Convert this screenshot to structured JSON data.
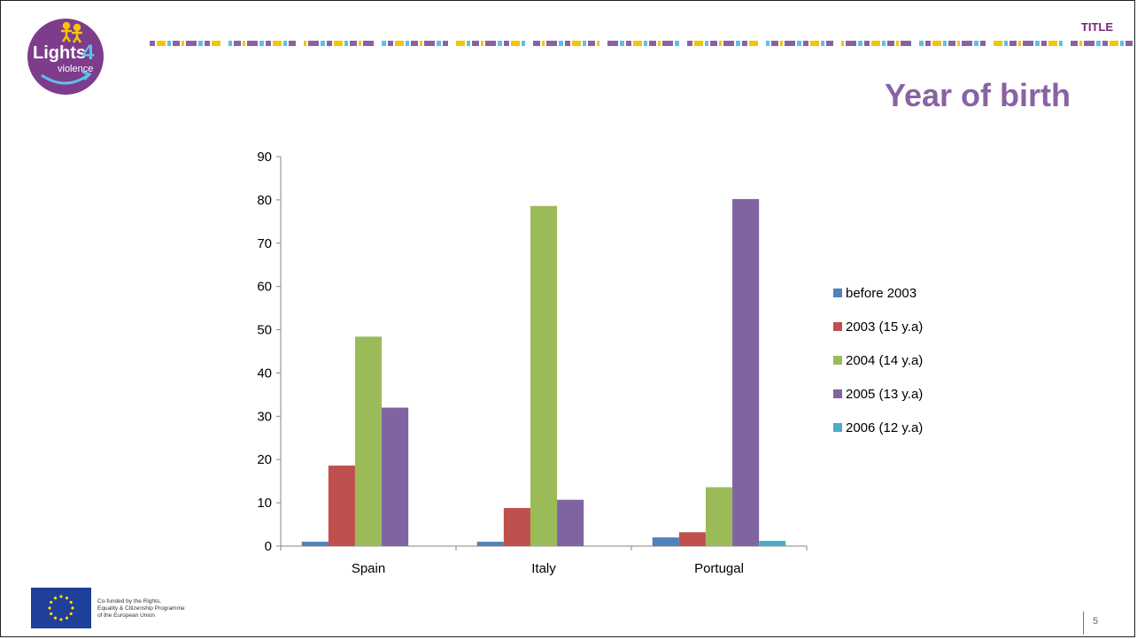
{
  "header": {
    "section_tag": "TITLE",
    "title": "Year of birth"
  },
  "logo": {
    "text_main": "Lights",
    "text_digit": "4",
    "text_sub": "violence"
  },
  "footer": {
    "funding_lines": [
      "Co-funded by the Rights,",
      "Equality & Citizenship Programme",
      "of the European Union"
    ],
    "page_number": "5"
  },
  "colors": {
    "accent": "#8a62a4",
    "tag": "#7a2673",
    "logo_bg": "#7d3c8c"
  },
  "chart_data": {
    "type": "bar",
    "categories": [
      "Spain",
      "Italy",
      "Portugal"
    ],
    "ylim": [
      0,
      90
    ],
    "yticks": [
      0,
      10,
      20,
      30,
      40,
      50,
      60,
      70,
      80,
      90
    ],
    "legend_position": "right",
    "grid": false,
    "series": [
      {
        "name": "before 2003",
        "color": "#4f81bd",
        "values": [
          1,
          1,
          2
        ]
      },
      {
        "name": "2003 (15 y.a)",
        "color": "#c0504d",
        "values": [
          18.6,
          8.8,
          3.2
        ]
      },
      {
        "name": "2004 (14 y.a)",
        "color": "#9bbb59",
        "values": [
          48.4,
          78.6,
          13.6
        ]
      },
      {
        "name": "2005 (13 y.a)",
        "color": "#8064a2",
        "values": [
          32,
          10.7,
          80.2
        ]
      },
      {
        "name": "2006 (12 y.a)",
        "color": "#4bacc6",
        "values": [
          0,
          0,
          1.2
        ]
      }
    ]
  }
}
